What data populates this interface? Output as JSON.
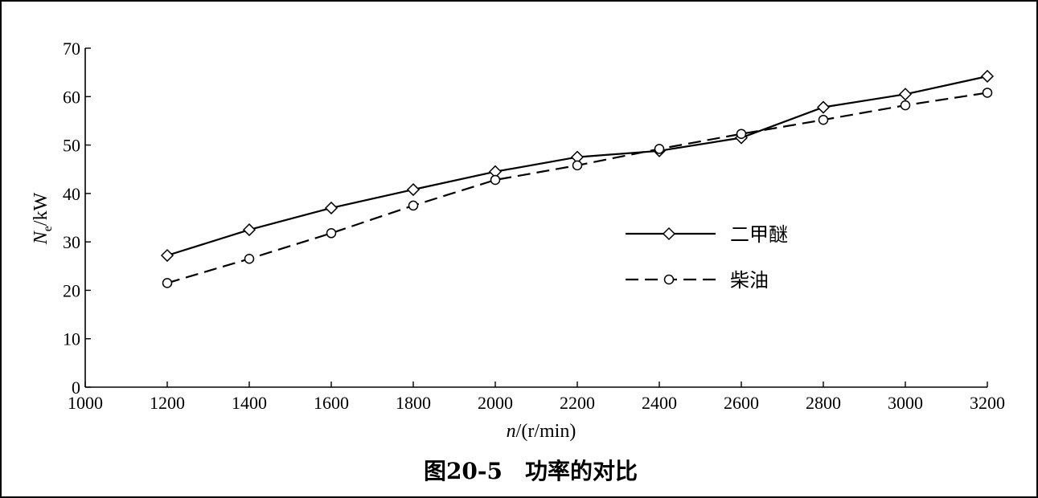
{
  "chart_data": {
    "type": "line",
    "title": "",
    "caption": {
      "number": "图20-5",
      "text": "功率的对比"
    },
    "xlabel": {
      "var": "n",
      "unit": "/(r/min)"
    },
    "ylabel": {
      "var": "N",
      "sub": "e",
      "unit": "/kW"
    },
    "xlim": [
      1000,
      3200
    ],
    "ylim": [
      0,
      70
    ],
    "xticks": [
      1000,
      1200,
      1400,
      1600,
      1800,
      2000,
      2200,
      2400,
      2600,
      2800,
      3000,
      3200
    ],
    "yticks": [
      0,
      10,
      20,
      30,
      40,
      50,
      60,
      70
    ],
    "grid": false,
    "legend_position": "center-right",
    "series": [
      {
        "name": "二甲醚",
        "marker": "diamond",
        "line_style": "solid",
        "color": "#000000",
        "x": [
          1200,
          1400,
          1600,
          1800,
          2000,
          2200,
          2400,
          2600,
          2800,
          3000,
          3200
        ],
        "y": [
          27.2,
          32.5,
          37,
          40.8,
          44.5,
          47.5,
          48.8,
          51.5,
          57.8,
          60.5,
          64.2
        ]
      },
      {
        "name": "柴油",
        "marker": "circle",
        "line_style": "dashed",
        "color": "#000000",
        "x": [
          1200,
          1400,
          1600,
          1800,
          2000,
          2200,
          2400,
          2600,
          2800,
          3000,
          3200
        ],
        "y": [
          21.5,
          26.5,
          31.8,
          37.5,
          42.8,
          45.8,
          49.2,
          52.3,
          55.2,
          58.2,
          60.8
        ]
      }
    ]
  }
}
